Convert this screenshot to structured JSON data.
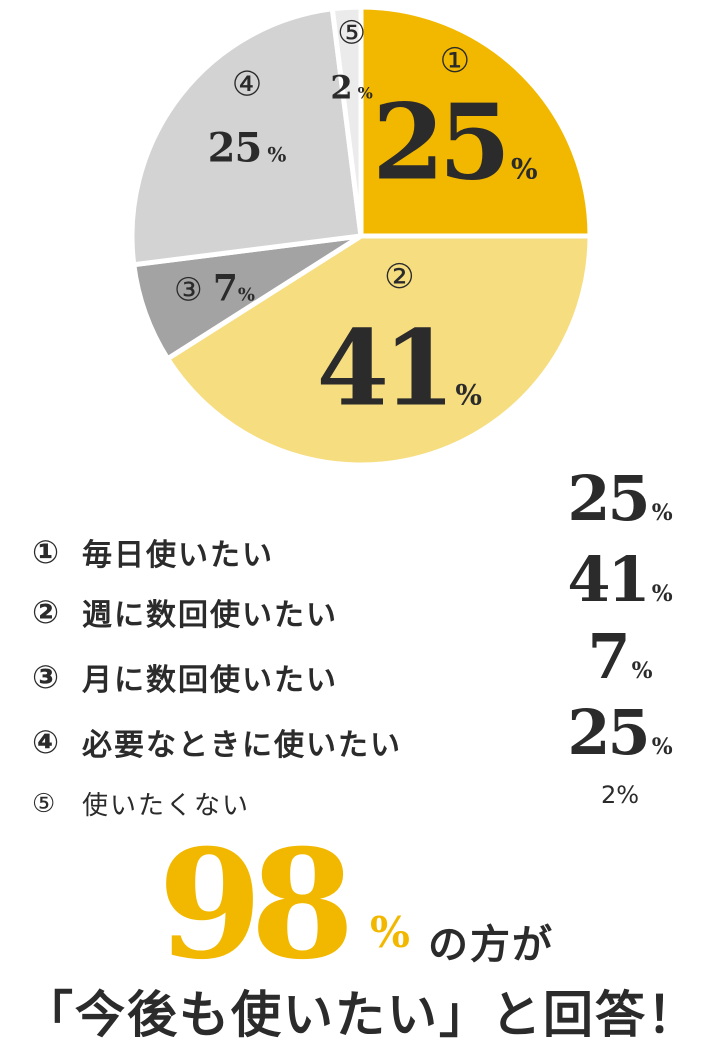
{
  "chart_data": {
    "type": "pie",
    "categories": [
      "毎日使いたい",
      "週に数回使いたい",
      "月に数回使いたい",
      "必要なときに使いたい",
      "使いたくない"
    ],
    "markers": [
      "①",
      "②",
      "③",
      "④",
      "⑤"
    ],
    "values": [
      25,
      41,
      7,
      25,
      2
    ],
    "unit": "%",
    "colors": [
      "#f2b800",
      "#f6dd80",
      "#a3a3a3",
      "#d3d3d3",
      "#ebebeb"
    ]
  },
  "legend": [
    {
      "marker": "①",
      "label": "毎日使いたい",
      "value": "25",
      "unit": "%"
    },
    {
      "marker": "②",
      "label": "週に数回使いたい",
      "value": "41",
      "unit": "%"
    },
    {
      "marker": "③",
      "label": "月に数回使いたい",
      "value": "7",
      "unit": "%"
    },
    {
      "marker": "④",
      "label": "必要なときに使いたい",
      "value": "25",
      "unit": "%"
    },
    {
      "marker": "⑤",
      "label": "使いたくない",
      "value": "2",
      "unit": "%"
    }
  ],
  "headline": {
    "number": "98",
    "unit": "%",
    "text": "の方が"
  },
  "subheadline": "「今後も使いたい」と回答！"
}
